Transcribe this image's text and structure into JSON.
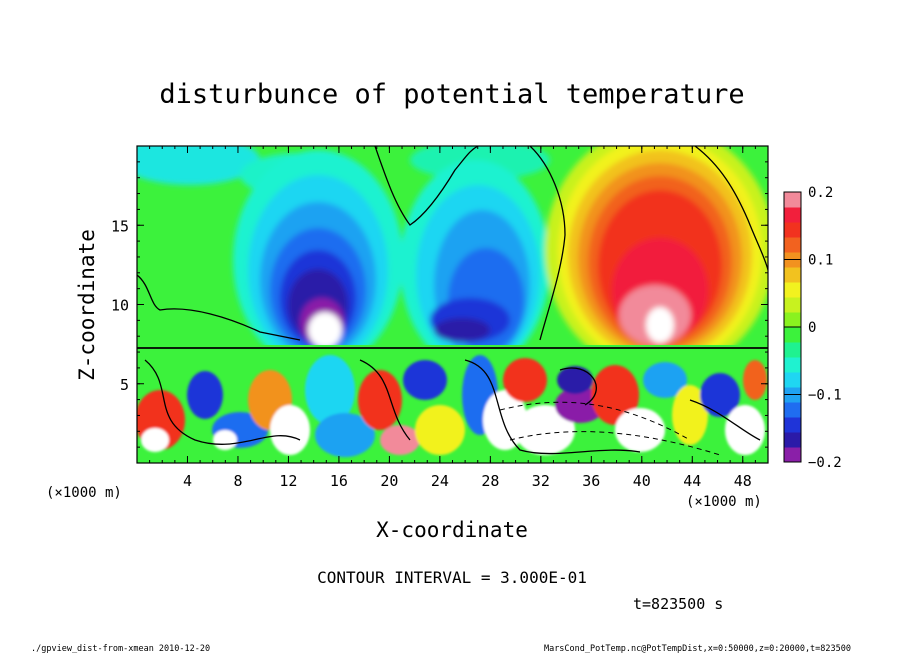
{
  "chart_data": {
    "type": "heatmap",
    "title": "disturbunce of potential temperature",
    "xlabel": "X-coordinate",
    "ylabel": "Z-coordinate",
    "x_unit_label": "(×1000 m)",
    "z_unit_label": "(×1000 m)",
    "xlim": [
      0,
      50
    ],
    "ylim": [
      0,
      20
    ],
    "x_ticks": [
      4,
      8,
      12,
      16,
      20,
      24,
      28,
      32,
      36,
      40,
      44,
      48
    ],
    "y_ticks": [
      5,
      10,
      15
    ],
    "colorbar": {
      "range": [
        -0.2,
        0.2
      ],
      "tick_labels": [
        "0.2",
        "0.1",
        "0",
        "−0.1",
        "−0.2"
      ],
      "tick_values": [
        0.2,
        0.1,
        0,
        -0.1,
        -0.2
      ],
      "colors": [
        "#8a1fa8",
        "#2b1aa8",
        "#1f34d8",
        "#1f6df0",
        "#1fa2f2",
        "#1fd6f2",
        "#1ff2d0",
        "#1ff290",
        "#3cf23c",
        "#8af21f",
        "#c8f21f",
        "#f2f21f",
        "#f2c21f",
        "#f2921f",
        "#f2621f",
        "#f2321f",
        "#f21f3c",
        "#f28a9a"
      ]
    },
    "contour_interval_text": "CONTOUR INTERVAL = 3.000E-01",
    "time_text": "t=823500 s"
  },
  "footer": {
    "left": "./gpview_dist-from-xmean  2010-12-20",
    "right": "MarsCond_PotTemp.nc@PotTempDist,x=0:50000,z=0:20000,t=823500"
  }
}
